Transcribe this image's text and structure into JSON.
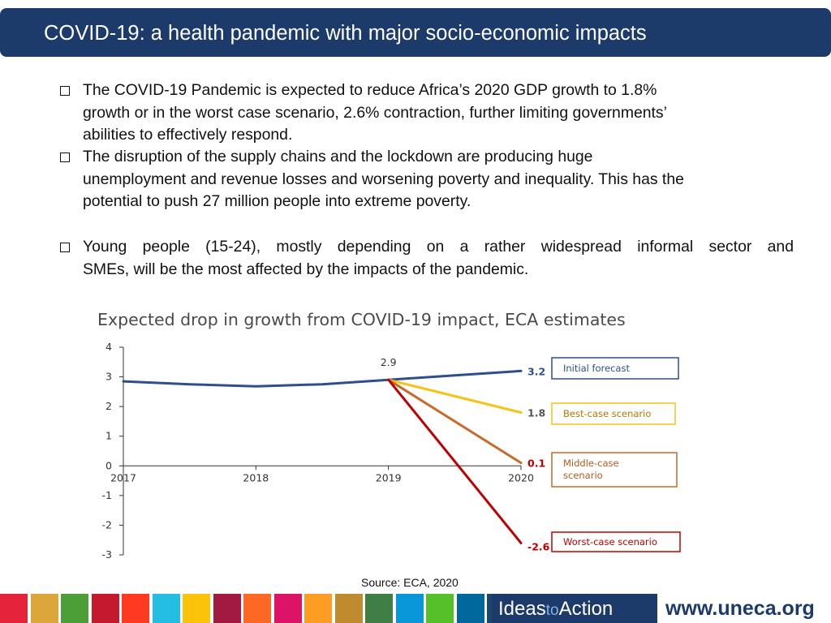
{
  "header": {
    "title": "COVID-19: a health pandemic with major socio-economic impacts"
  },
  "bullets": [
    {
      "lines": [
        "The COVID-19 Pandemic is expected to reduce Africa’s 2020 GDP growth to 1.8%",
        "growth or in the worst case scenario, 2.6% contraction, further limiting governments’",
        "abilities to effectively respond."
      ]
    },
    {
      "lines": [
        "The disruption of the supply chains and the lockdown are producing huge",
        "unemployment and revenue losses and worsening poverty and inequality. This has the",
        "potential to push 27 million people into extreme poverty."
      ]
    },
    {
      "lines": [
        "Young people (15-24), mostly depending on a rather widespread informal sector and",
        "SMEs, will be the most affected by the impacts of the pandemic."
      ]
    }
  ],
  "chart_data": {
    "type": "line",
    "title": "Expected drop in growth from COVID-19 impact, ECA estimates",
    "x_ticks": [
      "2017",
      "2018",
      "2019",
      "2020"
    ],
    "xlim": [
      2017,
      2020
    ],
    "ylim": [
      -3,
      4
    ],
    "y_ticks": [
      "4",
      "3",
      "2",
      "1",
      "0",
      "-1",
      "-2",
      "-3"
    ],
    "annotation": "2.9",
    "series": [
      {
        "name": "Initial forecast",
        "color": "#2e4f8a",
        "x": [
          2017,
          2017.5,
          2018,
          2018.5,
          2019,
          2019.5,
          2020
        ],
        "y": [
          2.85,
          2.75,
          2.68,
          2.75,
          2.9,
          3.05,
          3.2
        ],
        "end_label": "3.2"
      },
      {
        "name": "Best-case scenario",
        "color": "#f5c216",
        "x": [
          2019,
          2020
        ],
        "y": [
          2.9,
          1.8
        ],
        "end_label": "1.8"
      },
      {
        "name": "Middle-case scenario",
        "color": "#c76a2a",
        "x": [
          2019,
          2020
        ],
        "y": [
          2.9,
          0.1
        ],
        "end_label": "0.1"
      },
      {
        "name": "Worst-case scenario",
        "color": "#c00000",
        "x": [
          2019,
          2020
        ],
        "y": [
          2.9,
          -2.6
        ],
        "end_label": "-2.6"
      }
    ]
  },
  "source": "Source: ECA, 2020",
  "footer": {
    "sdg_colors": [
      "#e5243b",
      "#dda63a",
      "#4c9f38",
      "#c5192d",
      "#ff3a21",
      "#26bde2",
      "#fcc30b",
      "#a21942",
      "#fd6925",
      "#dd1367",
      "#fd9d24",
      "#bf8b2e",
      "#3f7e44",
      "#0a97d9",
      "#56c02b",
      "#00689d",
      "#19486a"
    ],
    "ideas_main": "Ideas",
    "ideas_small": "to",
    "ideas_end": "Action",
    "website": "www.uneca.org"
  }
}
